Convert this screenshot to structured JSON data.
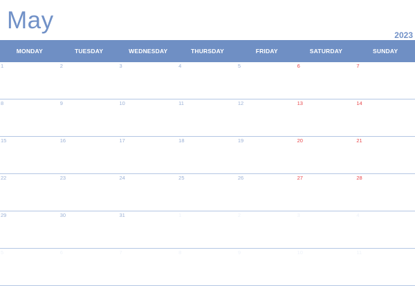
{
  "calendar": {
    "month": "May",
    "year": "2023",
    "weekdays": [
      "MONDAY",
      "TUESDAY",
      "WEDNESDAY",
      "THURSDAY",
      "FRIDAY",
      "SATURDAY",
      "SUNDAY"
    ],
    "weeks": [
      [
        "1",
        "2",
        "3",
        "4",
        "5",
        "6",
        "7"
      ],
      [
        "8",
        "9",
        "10",
        "11",
        "12",
        "13",
        "14"
      ],
      [
        "15",
        "16",
        "17",
        "18",
        "19",
        "20",
        "21"
      ],
      [
        "22",
        "23",
        "24",
        "25",
        "26",
        "27",
        "28"
      ],
      [
        "29",
        "30",
        "31",
        "1",
        "2",
        "3",
        "4"
      ],
      [
        "5",
        "6",
        "7",
        "8",
        "9",
        "10",
        "11"
      ]
    ],
    "colors": {
      "accent": "#6f8fc4",
      "title": "#7191c7",
      "weekday_number": "#9bb1d6",
      "weekend_number": "#e8474b",
      "grid_line": "#b3c6e3"
    }
  }
}
